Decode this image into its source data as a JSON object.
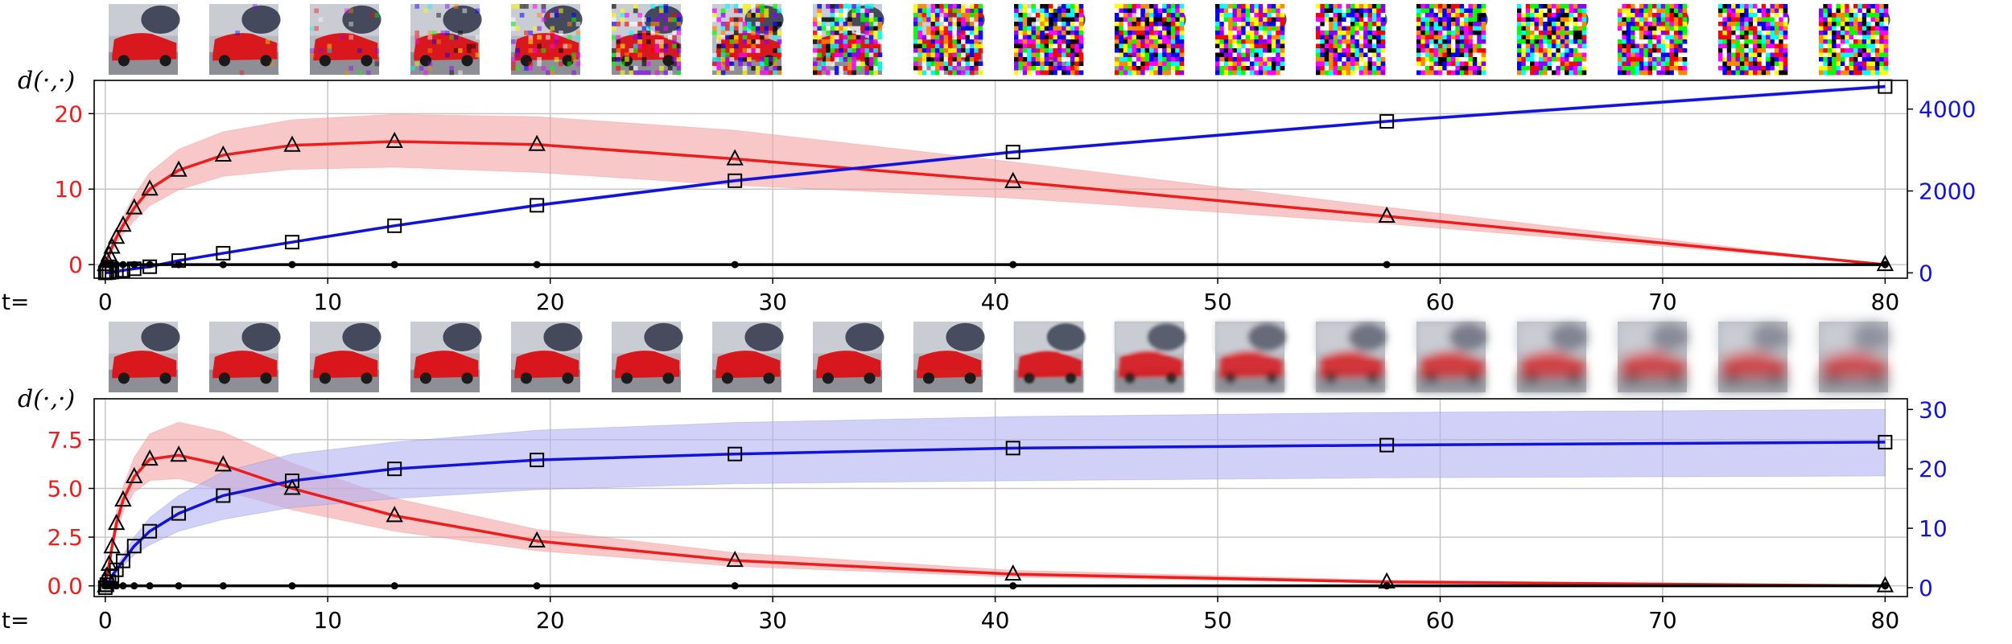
{
  "colors": {
    "red": "#ee1c1c",
    "blue": "#1212dd",
    "black": "#000000",
    "grid": "#c6c6c6",
    "red_band": "#f4a3a3",
    "blue_band": "#b3b3f2",
    "car_red": "#d8181c",
    "sky": "#a9adb6"
  },
  "icons": [
    "car-thumbnail-image",
    "noise-thumbnail-image",
    "blurred-car-thumbnail-image"
  ],
  "chart_data": [
    {
      "type": "line",
      "title": "",
      "xlabel": "t=",
      "ylabel_left": "d(·,·)",
      "xlim": [
        -0.5,
        81
      ],
      "xticks": [
        0,
        10,
        20,
        30,
        40,
        50,
        60,
        70,
        80
      ],
      "xtick_labels": [
        "0",
        "10",
        "20",
        "30",
        "40",
        "50",
        "60",
        "70",
        "80"
      ],
      "ylim_left": [
        -1.8,
        24.4
      ],
      "yticks_left": [
        0,
        10,
        20
      ],
      "ytick_labels_left": [
        "0",
        "10",
        "20"
      ],
      "ylim_right": [
        -130,
        4700
      ],
      "yticks_right": [
        0,
        2000,
        4000
      ],
      "ytick_labels_right": [
        "0",
        "2000",
        "4000"
      ],
      "grid": true,
      "thumbnails": "noise",
      "thumbnail_levels": [
        0,
        0.04,
        0.08,
        0.16,
        0.28,
        0.42,
        0.58,
        0.72,
        0.85,
        0.93,
        0.97,
        0.99,
        1,
        1,
        1,
        1,
        1,
        1
      ],
      "x": [
        0,
        0.07,
        0.17,
        0.3,
        0.5,
        0.8,
        1.3,
        2.0,
        3.3,
        5.3,
        8.4,
        13.0,
        19.4,
        28.3,
        40.8,
        57.6,
        80
      ],
      "series": [
        {
          "name": "red",
          "axis": "left",
          "marker": "triangle",
          "values": [
            0,
            0.6,
            1.3,
            2.3,
            3.6,
            5.2,
            7.5,
            10.0,
            12.5,
            14.5,
            15.8,
            16.3,
            15.9,
            14.0,
            11.0,
            6.4,
            0
          ],
          "band_lower": [
            0,
            0.4,
            0.9,
            1.7,
            2.7,
            4.0,
            5.8,
            7.8,
            9.9,
            11.7,
            12.6,
            12.9,
            12.2,
            10.5,
            8.8,
            5.4,
            0
          ],
          "band_upper": [
            0,
            0.8,
            1.7,
            2.9,
            4.5,
            6.4,
            9.2,
            12.2,
            15.3,
            17.6,
            19.2,
            19.9,
            19.6,
            17.8,
            13.6,
            7.6,
            0
          ]
        },
        {
          "name": "blue",
          "axis": "right",
          "marker": "square",
          "values": [
            0,
            5,
            10,
            20,
            35,
            60,
            100,
            150,
            300,
            480,
            750,
            1150,
            1650,
            2250,
            2950,
            3700,
            4550
          ],
          "band_lower": [
            0,
            4,
            8,
            17,
            30,
            52,
            90,
            138,
            280,
            455,
            725,
            1120,
            1615,
            2215,
            2915,
            3665,
            4510
          ],
          "band_upper": [
            0,
            6,
            12,
            23,
            40,
            68,
            110,
            162,
            320,
            505,
            775,
            1180,
            1685,
            2285,
            2985,
            3735,
            4590
          ]
        },
        {
          "name": "black",
          "axis": "left",
          "marker": "dot",
          "values": [
            0,
            0,
            0,
            0,
            0,
            0,
            0,
            0,
            0,
            0,
            0,
            0,
            0,
            0,
            0,
            0,
            0
          ]
        }
      ]
    },
    {
      "type": "line",
      "title": "",
      "xlabel": "t=",
      "ylabel_left": "d(·,·)",
      "xlim": [
        -0.5,
        81
      ],
      "xticks": [
        0,
        10,
        20,
        30,
        40,
        50,
        60,
        70,
        80
      ],
      "xtick_labels": [
        "0",
        "10",
        "20",
        "30",
        "40",
        "50",
        "60",
        "70",
        "80"
      ],
      "ylim_left": [
        -0.55,
        9.6
      ],
      "yticks_left": [
        0,
        2.5,
        5.0,
        7.5
      ],
      "ytick_labels_left": [
        "0.0",
        "2.5",
        "5.0",
        "7.5"
      ],
      "ylim_right": [
        -1.5,
        31.8
      ],
      "yticks_right": [
        0,
        10,
        20,
        30
      ],
      "ytick_labels_right": [
        "0",
        "10",
        "20",
        "30"
      ],
      "grid": true,
      "thumbnails": "blur",
      "thumbnail_levels": [
        0,
        0,
        0.02,
        0.04,
        0.07,
        0.1,
        0.14,
        0.2,
        0.3,
        1.2,
        2.2,
        3.4,
        4.4,
        5.4,
        6.2,
        6.8,
        7.2,
        7.6
      ],
      "x": [
        0,
        0.07,
        0.17,
        0.3,
        0.5,
        0.8,
        1.3,
        2.0,
        3.3,
        5.3,
        8.4,
        13.0,
        19.4,
        28.3,
        40.8,
        57.6,
        80
      ],
      "series": [
        {
          "name": "red",
          "axis": "left",
          "marker": "triangle",
          "values": [
            0,
            0.5,
            1.1,
            2.0,
            3.2,
            4.4,
            5.6,
            6.5,
            6.7,
            6.2,
            5.0,
            3.6,
            2.3,
            1.3,
            0.6,
            0.2,
            0
          ],
          "band_lower": [
            0,
            0.4,
            0.9,
            1.7,
            2.7,
            3.8,
            4.8,
            5.4,
            5.5,
            4.9,
            3.9,
            2.8,
            1.8,
            1.0,
            0.45,
            0.15,
            0
          ],
          "band_upper": [
            0,
            0.6,
            1.3,
            2.3,
            3.8,
            5.1,
            6.6,
            7.8,
            8.4,
            7.9,
            6.3,
            4.5,
            2.9,
            1.7,
            0.8,
            0.3,
            0
          ],
          "band_x": [
            0,
            0.07,
            0.17,
            0.3,
            0.5,
            0.8,
            1.3,
            2.0,
            3.3,
            5.3,
            8.4,
            13.0,
            19.4,
            28.3,
            40.8,
            57.6,
            80
          ],
          "plot_values": [
            0,
            0.5,
            1.1,
            2.0,
            3.2,
            4.4,
            5.6,
            6.5,
            6.7,
            6.2,
            5.0,
            3.6,
            2.3,
            1.3,
            0.6,
            0.2,
            0
          ]
        },
        {
          "name": "blue",
          "axis": "right",
          "marker": "square",
          "values": [
            0,
            0.5,
            1.0,
            2.0,
            3.0,
            4.5,
            7.0,
            9.5,
            12.5,
            15.5,
            18.0,
            20.0,
            21.5,
            22.5,
            23.5,
            24.0,
            24.5
          ],
          "band_lower": [
            0,
            0.4,
            0.8,
            1.5,
            2.4,
            3.6,
            5.5,
            7.2,
            9.5,
            11.5,
            13.5,
            15.0,
            16.5,
            17.5,
            18.0,
            18.5,
            18.8
          ],
          "band_upper": [
            0,
            0.6,
            1.2,
            2.5,
            3.7,
            5.5,
            8.5,
            11.8,
            15.5,
            19.5,
            22.5,
            24.5,
            26.5,
            27.8,
            28.8,
            29.5,
            30.0
          ]
        },
        {
          "name": "black",
          "axis": "left",
          "marker": "dot",
          "values": [
            0,
            0,
            0,
            0,
            0,
            0,
            0,
            0,
            0,
            0,
            0,
            0,
            0,
            0,
            0,
            0,
            0
          ]
        }
      ]
    }
  ]
}
